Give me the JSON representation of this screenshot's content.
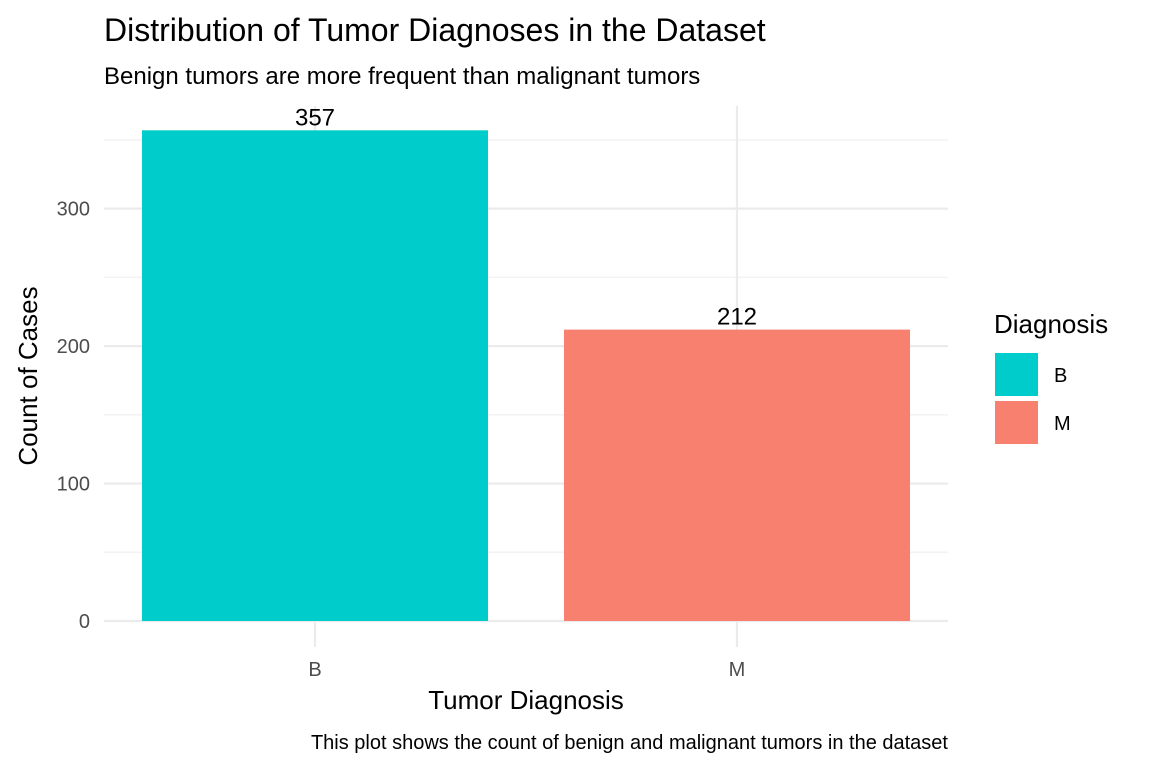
{
  "chart_data": {
    "type": "bar",
    "title": "Distribution of Tumor Diagnoses in the Dataset",
    "subtitle": "Benign tumors are more frequent than malignant tumors",
    "caption": "This plot shows the count of benign and malignant tumors in the dataset",
    "xlabel": "Tumor Diagnosis",
    "ylabel": "Count of Cases",
    "categories": [
      "B",
      "M"
    ],
    "values": [
      357,
      212
    ],
    "data_labels": [
      "357",
      "212"
    ],
    "colors": [
      "#00CDCB",
      "#F8806F"
    ],
    "y_ticks": [
      0,
      100,
      200,
      300
    ],
    "y_tick_labels": [
      "0",
      "100",
      "200",
      "300"
    ],
    "ylim": [
      0,
      375
    ],
    "grid": true,
    "legend": {
      "title": "Diagnosis",
      "position": "right",
      "entries": [
        {
          "label": "B",
          "color": "#00CDCB"
        },
        {
          "label": "M",
          "color": "#F8806F"
        }
      ]
    }
  }
}
